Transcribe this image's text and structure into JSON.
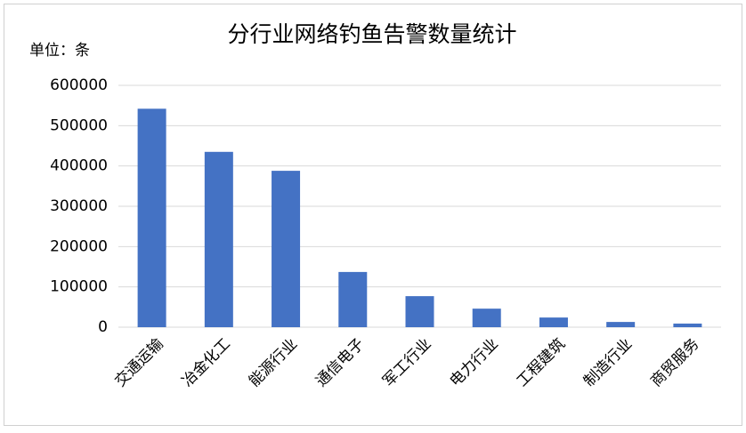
{
  "chart_data": {
    "type": "bar",
    "title": "分行业网络钓鱼告警数量统计",
    "unit_label": "单位：条",
    "categories": [
      "交通运输",
      "冶金化工",
      "能源行业",
      "通信电子",
      "军工行业",
      "电力行业",
      "工程建筑",
      "制造行业",
      "商贸服务"
    ],
    "values": [
      542000,
      435000,
      388000,
      137000,
      77000,
      46000,
      24000,
      13000,
      9000
    ],
    "color": "#4472c4",
    "ylim": [
      0,
      600000
    ],
    "yticks": [
      0,
      100000,
      200000,
      300000,
      400000,
      500000,
      600000
    ],
    "grid": true
  }
}
